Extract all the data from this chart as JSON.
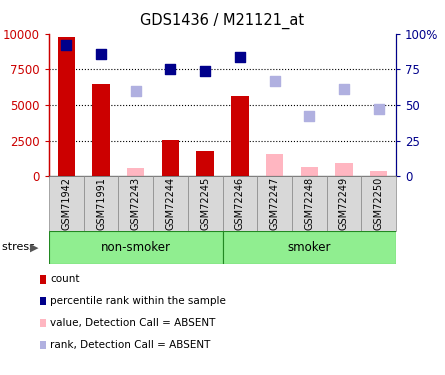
{
  "title": "GDS1436 / M21121_at",
  "samples": [
    "GSM71942",
    "GSM71991",
    "GSM72243",
    "GSM72244",
    "GSM72245",
    "GSM72246",
    "GSM72247",
    "GSM72248",
    "GSM72249",
    "GSM72250"
  ],
  "count_values": [
    9800,
    6500,
    null,
    2550,
    1800,
    5600,
    null,
    null,
    null,
    null
  ],
  "count_absent_values": [
    null,
    null,
    600,
    null,
    null,
    null,
    1550,
    650,
    900,
    350
  ],
  "rank_values": [
    92,
    86,
    null,
    75,
    74,
    84,
    null,
    null,
    null,
    null
  ],
  "rank_absent_values": [
    null,
    null,
    59.5,
    null,
    null,
    null,
    67,
    42,
    61,
    47
  ],
  "group_labels": [
    "non-smoker",
    "smoker"
  ],
  "group_splits": [
    5
  ],
  "group_colors": [
    "#90EE90",
    "#90EE90"
  ],
  "stress_label": "stress",
  "ylim_left": [
    0,
    10000
  ],
  "ylim_right": [
    0,
    100
  ],
  "yticks_left": [
    0,
    2500,
    5000,
    7500,
    10000
  ],
  "ytick_labels_left": [
    "0",
    "2500",
    "5000",
    "7500",
    "10000"
  ],
  "yticks_right": [
    0,
    25,
    50,
    75,
    100
  ],
  "ytick_labels_right": [
    "0",
    "25",
    "50",
    "75",
    "100%"
  ],
  "count_bar_color": "#cc0000",
  "count_absent_bar_color": "#ffb6c1",
  "rank_dot_color": "#00008B",
  "rank_absent_dot_color": "#b0b0e0",
  "background_color": "#ffffff",
  "legend_items": [
    {
      "label": "count",
      "color": "#cc0000"
    },
    {
      "label": "percentile rank within the sample",
      "color": "#00008B"
    },
    {
      "label": "value, Detection Call = ABSENT",
      "color": "#ffb6c1"
    },
    {
      "label": "rank, Detection Call = ABSENT",
      "color": "#b0b0e0"
    }
  ],
  "grid_dotted_values": [
    2500,
    5000,
    7500
  ],
  "bar_width": 0.5,
  "dot_size": 55
}
